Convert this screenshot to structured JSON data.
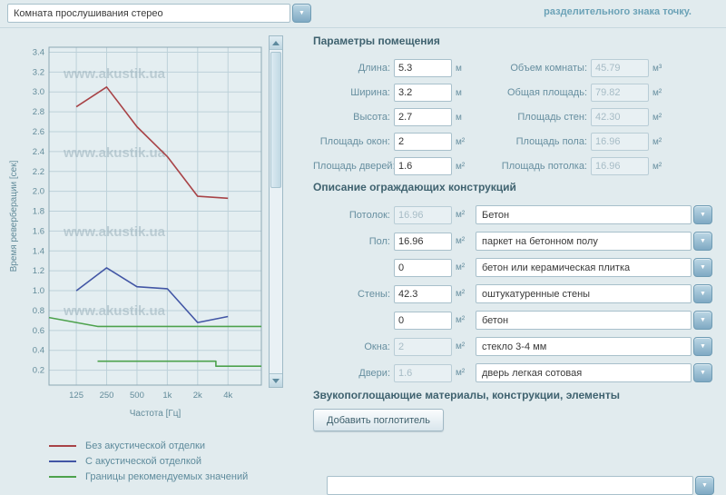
{
  "topbar": {
    "room_select_value": "Комната прослушивания стерео",
    "note": "разделительного знака точку."
  },
  "chart_data": {
    "type": "line",
    "title": "",
    "xlabel": "Частота [Гц]",
    "ylabel": "Время реверберации [сек]",
    "x_ticks": [
      "125",
      "250",
      "500",
      "1k",
      "2k",
      "4k"
    ],
    "ylim": [
      0.2,
      3.4
    ],
    "y_step": 0.2,
    "grid": true,
    "legend_position": "below-chart",
    "x_unit": "octaves-above-125Hz",
    "watermark": "www.akustik.ua",
    "series": [
      {
        "name": "Без акустической отделки",
        "color": "#a84347",
        "x": [
          0,
          1,
          2,
          3,
          4,
          5
        ],
        "y": [
          2.85,
          3.05,
          2.65,
          2.35,
          1.95,
          1.93
        ]
      },
      {
        "name": "С акустической отделкой",
        "color": "#4256a5",
        "x": [
          0,
          1,
          2,
          3,
          4,
          5
        ],
        "y": [
          1.0,
          1.23,
          1.04,
          1.02,
          0.68,
          0.74
        ]
      },
      {
        "name": "Границы рекомендуемых значений (верхняя)",
        "color": "#4da24d",
        "x": [
          -0.9,
          0.7,
          6.1
        ],
        "y": [
          0.73,
          0.64,
          0.64
        ]
      },
      {
        "name": "Границы рекомендуемых значений (нижняя)",
        "color": "#4da24d",
        "x": [
          0.7,
          4.6,
          4.6,
          6.1
        ],
        "y": [
          0.29,
          0.29,
          0.24,
          0.24
        ]
      }
    ],
    "legend": [
      {
        "label": "Без акустической отделки",
        "color": "#a84347"
      },
      {
        "label": "С акустической отделкой",
        "color": "#4256a5"
      },
      {
        "label": "Границы рекомендуемых значений",
        "color": "#4da24d"
      }
    ]
  },
  "room_params": {
    "title": "Параметры помещения",
    "inputs": [
      {
        "label": "Длина:",
        "value": "5.3",
        "unit": "м"
      },
      {
        "label": "Ширина:",
        "value": "3.2",
        "unit": "м"
      },
      {
        "label": "Высота:",
        "value": "2.7",
        "unit": "м"
      },
      {
        "label": "Площадь окон:",
        "value": "2",
        "unit": "м²"
      },
      {
        "label": "Площадь дверей:",
        "value": "1.6",
        "unit": "м²"
      }
    ],
    "computed": [
      {
        "label": "Объем комнаты:",
        "value": "45.79",
        "unit": "м³"
      },
      {
        "label": "Общая площадь:",
        "value": "79.82",
        "unit": "м²"
      },
      {
        "label": "Площадь стен:",
        "value": "42.30",
        "unit": "м²"
      },
      {
        "label": "Площадь пола:",
        "value": "16.96",
        "unit": "м²"
      },
      {
        "label": "Площадь потолка:",
        "value": "16.96",
        "unit": "м²"
      }
    ]
  },
  "constructions": {
    "title": "Описание ограждающих конструкций",
    "rows": [
      {
        "label": "Потолок:",
        "area": "16.96",
        "unit": "м²",
        "readonly": true,
        "material": "Бетон"
      },
      {
        "label": "Пол:",
        "area": "16.96",
        "unit": "м²",
        "readonly": false,
        "material": "паркет на бетонном полу"
      },
      {
        "label": "",
        "area": "0",
        "unit": "м²",
        "readonly": false,
        "material": "бетон или керамическая плитка"
      },
      {
        "label": "Стены:",
        "area": "42.3",
        "unit": "м²",
        "readonly": false,
        "material": "оштукатуренные стены"
      },
      {
        "label": "",
        "area": "0",
        "unit": "м²",
        "readonly": false,
        "material": "бетон"
      },
      {
        "label": "Окна:",
        "area": "2",
        "unit": "м²",
        "readonly": true,
        "material": "стекло 3-4 мм"
      },
      {
        "label": "Двери:",
        "area": "1.6",
        "unit": "м²",
        "readonly": true,
        "material": "дверь легкая сотовая"
      }
    ]
  },
  "absorbers": {
    "title": "Звукопоглощающие материалы, конструкции, элементы",
    "add_button": "Добавить поглотитель"
  }
}
